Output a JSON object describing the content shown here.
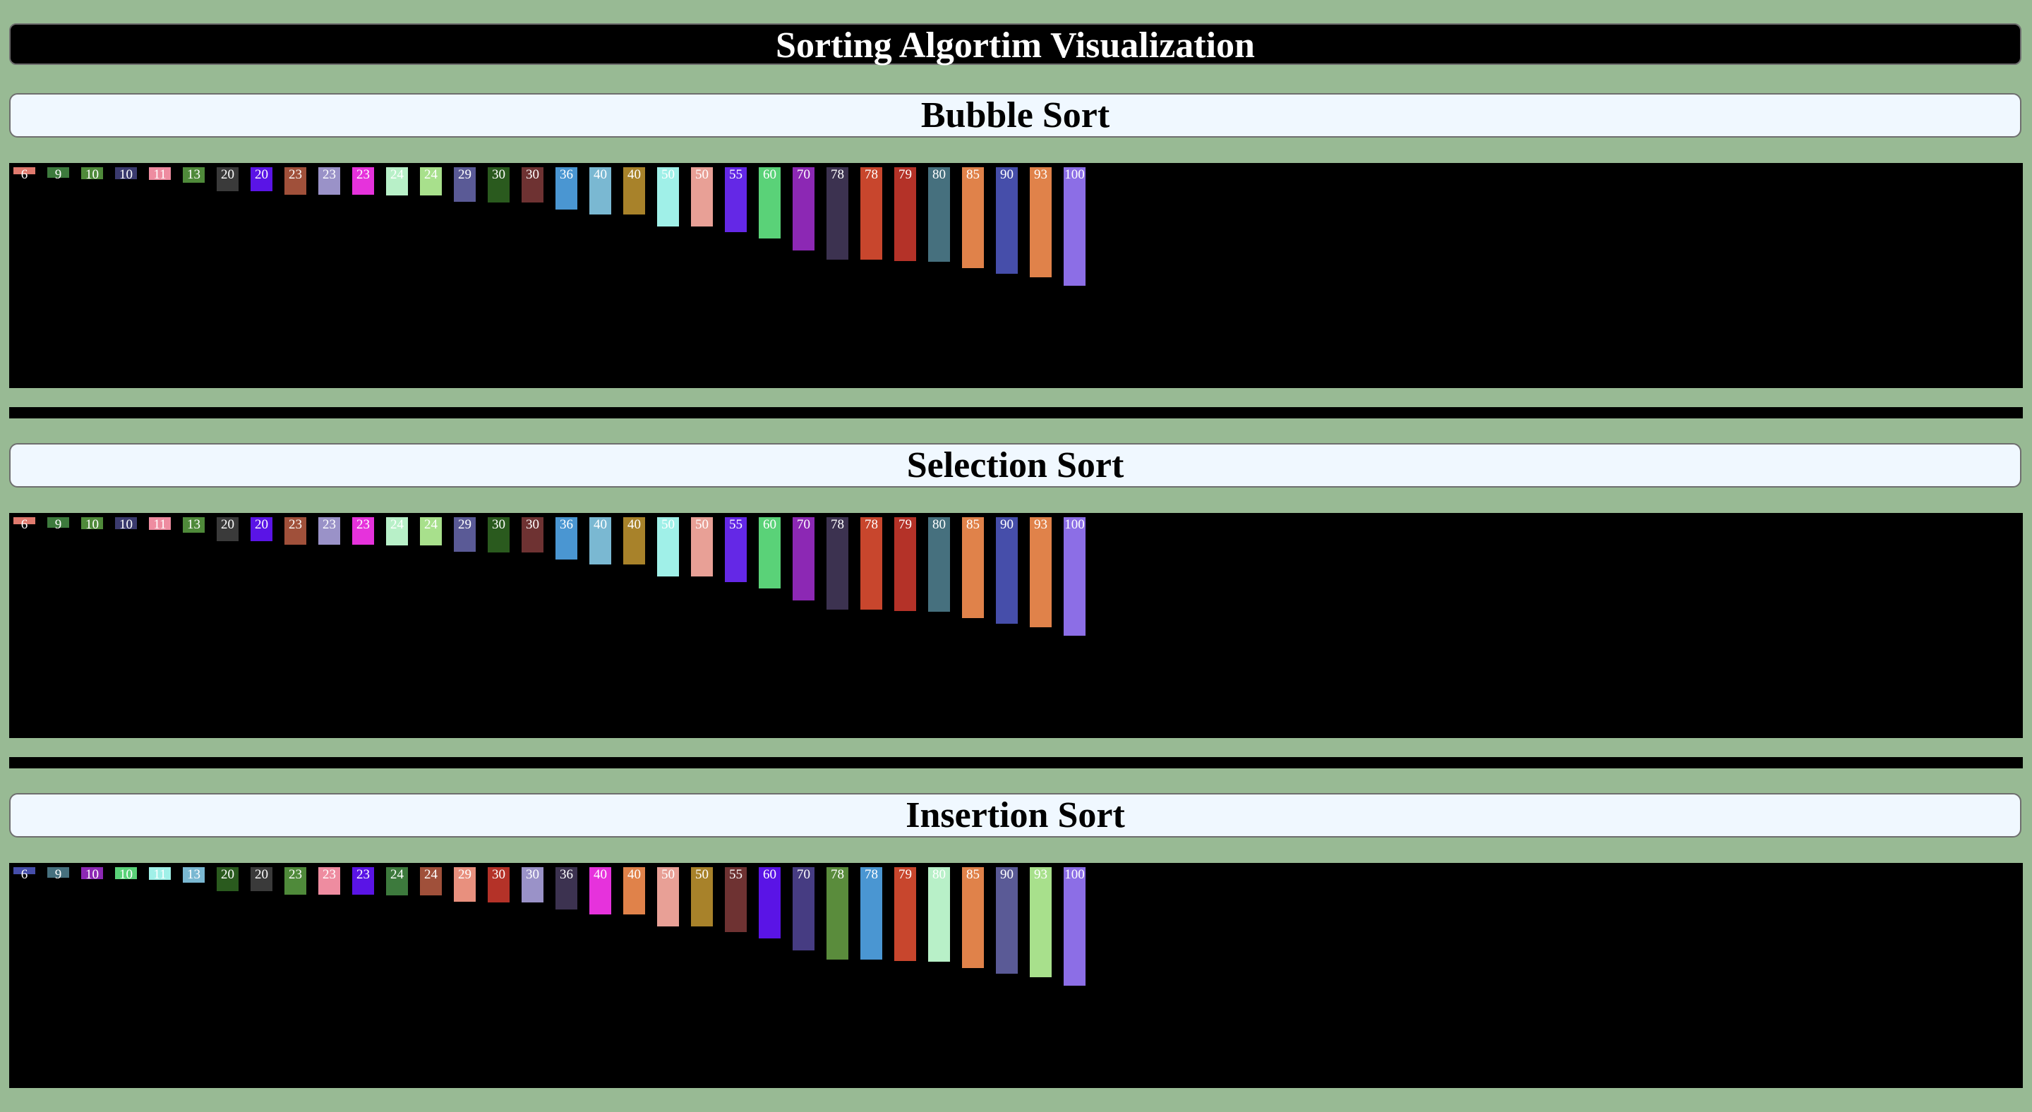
{
  "page_title": "Sorting Algortim Visualization",
  "max_value": 100,
  "sections": [
    {
      "heading": "Bubble Sort",
      "bars": [
        {
          "value": 6,
          "color": "#e07a6e"
        },
        {
          "value": 9,
          "color": "#3d7a3d"
        },
        {
          "value": 10,
          "color": "#4f8a3a"
        },
        {
          "value": 10,
          "color": "#3a3a6e"
        },
        {
          "value": 11,
          "color": "#ee8ca0"
        },
        {
          "value": 13,
          "color": "#4f8a3a"
        },
        {
          "value": 20,
          "color": "#3a3a3a"
        },
        {
          "value": 20,
          "color": "#5a14e6"
        },
        {
          "value": 23,
          "color": "#a0503a"
        },
        {
          "value": 23,
          "color": "#9a92c8"
        },
        {
          "value": 23,
          "color": "#e632dc"
        },
        {
          "value": 24,
          "color": "#b8f0c8"
        },
        {
          "value": 24,
          "color": "#a8e08c"
        },
        {
          "value": 29,
          "color": "#5a5a96"
        },
        {
          "value": 30,
          "color": "#2a5a1e"
        },
        {
          "value": 30,
          "color": "#6e3232"
        },
        {
          "value": 36,
          "color": "#4a96d2"
        },
        {
          "value": 40,
          "color": "#7ab8d2"
        },
        {
          "value": 40,
          "color": "#a8822a"
        },
        {
          "value": 50,
          "color": "#a0f0e8"
        },
        {
          "value": 50,
          "color": "#e8a096"
        },
        {
          "value": 55,
          "color": "#6428e6"
        },
        {
          "value": 60,
          "color": "#5ad278"
        },
        {
          "value": 70,
          "color": "#8c28b4"
        },
        {
          "value": 78,
          "color": "#3c3250"
        },
        {
          "value": 78,
          "color": "#c8462d"
        },
        {
          "value": 79,
          "color": "#b43228"
        },
        {
          "value": 80,
          "color": "#46707e"
        },
        {
          "value": 85,
          "color": "#e0824a"
        },
        {
          "value": 90,
          "color": "#464eaa"
        },
        {
          "value": 93,
          "color": "#e0824a"
        },
        {
          "value": 100,
          "color": "#8c6ee6"
        }
      ]
    },
    {
      "heading": "Selection Sort",
      "bars": [
        {
          "value": 6,
          "color": "#e07a6e"
        },
        {
          "value": 9,
          "color": "#3d7a3d"
        },
        {
          "value": 10,
          "color": "#4f8a3a"
        },
        {
          "value": 10,
          "color": "#3a3a6e"
        },
        {
          "value": 11,
          "color": "#ee8ca0"
        },
        {
          "value": 13,
          "color": "#4f8a3a"
        },
        {
          "value": 20,
          "color": "#3a3a3a"
        },
        {
          "value": 20,
          "color": "#5a14e6"
        },
        {
          "value": 23,
          "color": "#a0503a"
        },
        {
          "value": 23,
          "color": "#9a92c8"
        },
        {
          "value": 23,
          "color": "#e632dc"
        },
        {
          "value": 24,
          "color": "#b8f0c8"
        },
        {
          "value": 24,
          "color": "#a8e08c"
        },
        {
          "value": 29,
          "color": "#5a5a96"
        },
        {
          "value": 30,
          "color": "#2a5a1e"
        },
        {
          "value": 30,
          "color": "#6e3232"
        },
        {
          "value": 36,
          "color": "#4a96d2"
        },
        {
          "value": 40,
          "color": "#7ab8d2"
        },
        {
          "value": 40,
          "color": "#a8822a"
        },
        {
          "value": 50,
          "color": "#a0f0e8"
        },
        {
          "value": 50,
          "color": "#e8a096"
        },
        {
          "value": 55,
          "color": "#6428e6"
        },
        {
          "value": 60,
          "color": "#5ad278"
        },
        {
          "value": 70,
          "color": "#8c28b4"
        },
        {
          "value": 78,
          "color": "#3c3250"
        },
        {
          "value": 78,
          "color": "#c8462d"
        },
        {
          "value": 79,
          "color": "#b43228"
        },
        {
          "value": 80,
          "color": "#46707e"
        },
        {
          "value": 85,
          "color": "#e0824a"
        },
        {
          "value": 90,
          "color": "#464eaa"
        },
        {
          "value": 93,
          "color": "#e0824a"
        },
        {
          "value": 100,
          "color": "#8c6ee6"
        }
      ]
    },
    {
      "heading": "Insertion Sort",
      "bars": [
        {
          "value": 6,
          "color": "#464eaa"
        },
        {
          "value": 9,
          "color": "#46707e"
        },
        {
          "value": 10,
          "color": "#8c28b4"
        },
        {
          "value": 10,
          "color": "#5ad278"
        },
        {
          "value": 11,
          "color": "#a0f0e8"
        },
        {
          "value": 13,
          "color": "#7ab8d2"
        },
        {
          "value": 20,
          "color": "#2a5a1e"
        },
        {
          "value": 20,
          "color": "#3a3a3a"
        },
        {
          "value": 23,
          "color": "#4f8a3a"
        },
        {
          "value": 23,
          "color": "#ee8ca0"
        },
        {
          "value": 23,
          "color": "#5a14e6"
        },
        {
          "value": 24,
          "color": "#3d7a3d"
        },
        {
          "value": 24,
          "color": "#a0503a"
        },
        {
          "value": 29,
          "color": "#e8907e"
        },
        {
          "value": 30,
          "color": "#b43228"
        },
        {
          "value": 30,
          "color": "#9a92c8"
        },
        {
          "value": 36,
          "color": "#3c3250"
        },
        {
          "value": 40,
          "color": "#e632dc"
        },
        {
          "value": 40,
          "color": "#e0824a"
        },
        {
          "value": 50,
          "color": "#e8a096"
        },
        {
          "value": 50,
          "color": "#a8822a"
        },
        {
          "value": 55,
          "color": "#6e3232"
        },
        {
          "value": 60,
          "color": "#5a14e6"
        },
        {
          "value": 70,
          "color": "#463c82"
        },
        {
          "value": 78,
          "color": "#5a8c3c"
        },
        {
          "value": 78,
          "color": "#4a96d2"
        },
        {
          "value": 79,
          "color": "#c8462d"
        },
        {
          "value": 80,
          "color": "#b8f0c8"
        },
        {
          "value": 85,
          "color": "#e0824a"
        },
        {
          "value": 90,
          "color": "#5a5a96"
        },
        {
          "value": 93,
          "color": "#a8e08c"
        },
        {
          "value": 100,
          "color": "#8c6ee6"
        }
      ]
    }
  ]
}
